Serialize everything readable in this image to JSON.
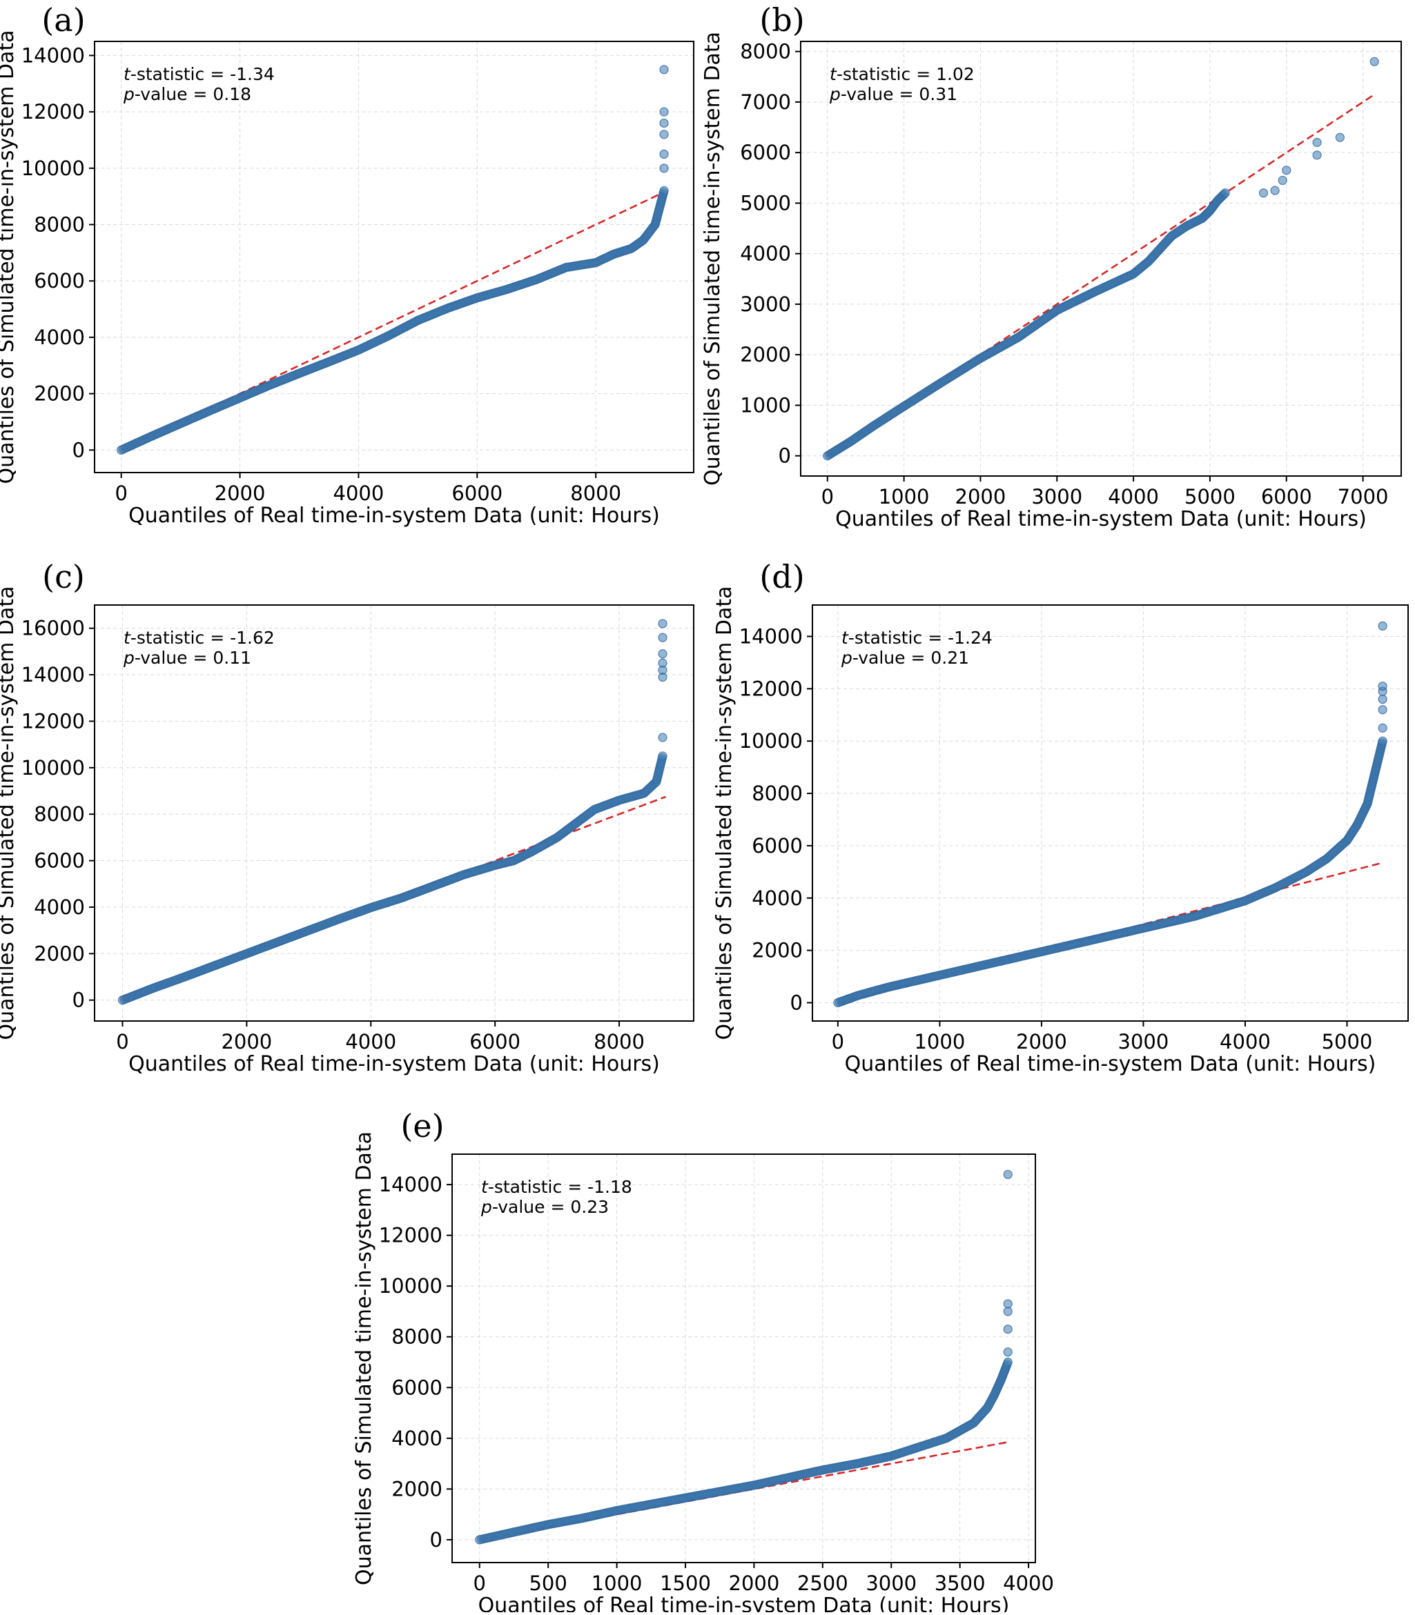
{
  "chart_data": [
    {
      "panel_label": "(a)",
      "type": "scatter",
      "xlabel": "Quantiles of Real time-in-system Data (unit: Hours)",
      "ylabel": "Quantiles of Simulated time-in-system Data",
      "xlim": [
        -450,
        9650
      ],
      "ylim": [
        -800,
        14500
      ],
      "xticks": [
        0,
        2000,
        4000,
        6000,
        8000
      ],
      "yticks": [
        0,
        2000,
        4000,
        6000,
        8000,
        10000,
        12000,
        14000
      ],
      "t_statistic": "-1.34",
      "p_value": "0.18",
      "reference_line": [
        [
          0,
          0
        ],
        [
          9150,
          9150
        ]
      ],
      "qq_points": [
        [
          0,
          0
        ],
        [
          500,
          480
        ],
        [
          1000,
          940
        ],
        [
          1500,
          1400
        ],
        [
          2000,
          1850
        ],
        [
          2500,
          2300
        ],
        [
          3000,
          2720
        ],
        [
          3500,
          3130
        ],
        [
          4000,
          3550
        ],
        [
          4500,
          4050
        ],
        [
          5000,
          4600
        ],
        [
          5500,
          5030
        ],
        [
          6000,
          5400
        ],
        [
          6500,
          5700
        ],
        [
          7000,
          6050
        ],
        [
          7500,
          6480
        ],
        [
          8000,
          6650
        ],
        [
          8300,
          6950
        ],
        [
          8600,
          7150
        ],
        [
          8800,
          7450
        ],
        [
          9000,
          8000
        ],
        [
          9100,
          8800
        ],
        [
          9150,
          9200
        ]
      ],
      "tail_points": [
        [
          9150,
          10000
        ],
        [
          9150,
          10500
        ],
        [
          9150,
          11200
        ],
        [
          9150,
          11600
        ],
        [
          9150,
          12000
        ],
        [
          9150,
          13500
        ]
      ]
    },
    {
      "panel_label": "(b)",
      "type": "scatter",
      "xlabel": "Quantiles of Real time-in-system Data (unit: Hours)",
      "ylabel": "Quantiles of Simulated time-in-system Data",
      "xlim": [
        -350,
        7500
      ],
      "ylim": [
        -400,
        8200
      ],
      "xticks": [
        0,
        1000,
        2000,
        3000,
        4000,
        5000,
        6000,
        7000
      ],
      "yticks": [
        0,
        1000,
        2000,
        3000,
        4000,
        5000,
        6000,
        7000,
        8000
      ],
      "t_statistic": "1.02",
      "p_value": "0.31",
      "reference_line": [
        [
          0,
          0
        ],
        [
          7150,
          7150
        ]
      ],
      "qq_points": [
        [
          0,
          0
        ],
        [
          300,
          280
        ],
        [
          600,
          590
        ],
        [
          1000,
          980
        ],
        [
          1500,
          1460
        ],
        [
          2000,
          1930
        ],
        [
          2500,
          2350
        ],
        [
          3000,
          2880
        ],
        [
          3500,
          3250
        ],
        [
          4000,
          3600
        ],
        [
          4200,
          3850
        ],
        [
          4500,
          4350
        ],
        [
          4700,
          4550
        ],
        [
          4900,
          4700
        ],
        [
          5000,
          4850
        ],
        [
          5100,
          5050
        ],
        [
          5200,
          5200
        ]
      ],
      "tail_points": [
        [
          5700,
          5200
        ],
        [
          5850,
          5250
        ],
        [
          5950,
          5450
        ],
        [
          6000,
          5650
        ],
        [
          6400,
          5950
        ],
        [
          6400,
          6200
        ],
        [
          6700,
          6300
        ],
        [
          7150,
          7800
        ]
      ]
    },
    {
      "panel_label": "(c)",
      "type": "scatter",
      "xlabel": "Quantiles of Real time-in-system Data (unit: Hours)",
      "ylabel": "Quantiles of Simulated time-in-system Data",
      "xlim": [
        -450,
        9200
      ],
      "ylim": [
        -900,
        17000
      ],
      "xticks": [
        0,
        2000,
        4000,
        6000,
        8000
      ],
      "yticks": [
        0,
        2000,
        4000,
        6000,
        8000,
        10000,
        12000,
        14000,
        16000
      ],
      "t_statistic": "-1.62",
      "p_value": "0.11",
      "reference_line": [
        [
          0,
          0
        ],
        [
          8750,
          8750
        ]
      ],
      "qq_points": [
        [
          0,
          0
        ],
        [
          500,
          520
        ],
        [
          1000,
          1000
        ],
        [
          1500,
          1500
        ],
        [
          2000,
          2000
        ],
        [
          2500,
          2500
        ],
        [
          3000,
          3000
        ],
        [
          3500,
          3500
        ],
        [
          4000,
          3980
        ],
        [
          4500,
          4400
        ],
        [
          5000,
          4900
        ],
        [
          5500,
          5400
        ],
        [
          6000,
          5800
        ],
        [
          6300,
          6000
        ],
        [
          6600,
          6400
        ],
        [
          7000,
          7000
        ],
        [
          7300,
          7600
        ],
        [
          7600,
          8200
        ],
        [
          8000,
          8600
        ],
        [
          8400,
          8900
        ],
        [
          8600,
          9400
        ],
        [
          8700,
          10500
        ]
      ],
      "tail_points": [
        [
          8700,
          11300
        ],
        [
          8700,
          13900
        ],
        [
          8700,
          14200
        ],
        [
          8700,
          14500
        ],
        [
          8700,
          14900
        ],
        [
          8700,
          15600
        ],
        [
          8700,
          16200
        ]
      ]
    },
    {
      "panel_label": "(d)",
      "type": "scatter",
      "xlabel": "Quantiles of Real time-in-system Data (unit: Hours)",
      "ylabel": "Quantiles of Simulated time-in-system Data",
      "xlim": [
        -250,
        5600
      ],
      "ylim": [
        -700,
        15200
      ],
      "xticks": [
        0,
        1000,
        2000,
        3000,
        4000,
        5000
      ],
      "yticks": [
        0,
        2000,
        4000,
        6000,
        8000,
        10000,
        12000,
        14000
      ],
      "t_statistic": "-1.24",
      "p_value": "0.21",
      "reference_line": [
        [
          0,
          0
        ],
        [
          5350,
          5350
        ]
      ],
      "qq_points": [
        [
          0,
          0
        ],
        [
          200,
          280
        ],
        [
          500,
          600
        ],
        [
          1000,
          1050
        ],
        [
          1500,
          1500
        ],
        [
          2000,
          1950
        ],
        [
          2500,
          2400
        ],
        [
          3000,
          2850
        ],
        [
          3500,
          3300
        ],
        [
          4000,
          3900
        ],
        [
          4300,
          4400
        ],
        [
          4600,
          5000
        ],
        [
          4800,
          5500
        ],
        [
          5000,
          6200
        ],
        [
          5100,
          6800
        ],
        [
          5200,
          7600
        ],
        [
          5250,
          8400
        ],
        [
          5300,
          9200
        ],
        [
          5350,
          10000
        ]
      ],
      "tail_points": [
        [
          5350,
          10500
        ],
        [
          5350,
          11200
        ],
        [
          5350,
          11600
        ],
        [
          5350,
          11900
        ],
        [
          5350,
          12100
        ],
        [
          5350,
          14400
        ]
      ]
    },
    {
      "panel_label": "(e)",
      "type": "scatter",
      "xlabel": "Quantiles of Real time-in-system Data (unit: Hours)",
      "ylabel": "Quantiles of Simulated time-in-system Data",
      "xlim": [
        -200,
        4050
      ],
      "ylim": [
        -900,
        15200
      ],
      "xticks": [
        0,
        500,
        1000,
        1500,
        2000,
        2500,
        3000,
        3500,
        4000
      ],
      "yticks": [
        0,
        2000,
        4000,
        6000,
        8000,
        10000,
        12000,
        14000
      ],
      "t_statistic": "-1.18",
      "p_value": "0.23",
      "reference_line": [
        [
          0,
          0
        ],
        [
          3850,
          3850
        ]
      ],
      "qq_points": [
        [
          0,
          0
        ],
        [
          250,
          300
        ],
        [
          500,
          600
        ],
        [
          750,
          850
        ],
        [
          1000,
          1150
        ],
        [
          1250,
          1400
        ],
        [
          1500,
          1650
        ],
        [
          1750,
          1900
        ],
        [
          2000,
          2150
        ],
        [
          2250,
          2450
        ],
        [
          2500,
          2750
        ],
        [
          2750,
          3000
        ],
        [
          3000,
          3300
        ],
        [
          3200,
          3650
        ],
        [
          3400,
          4000
        ],
        [
          3500,
          4300
        ],
        [
          3600,
          4600
        ],
        [
          3700,
          5200
        ],
        [
          3750,
          5700
        ],
        [
          3800,
          6300
        ],
        [
          3850,
          7000
        ]
      ],
      "tail_points": [
        [
          3850,
          7400
        ],
        [
          3850,
          8300
        ],
        [
          3850,
          9000
        ],
        [
          3850,
          9300
        ],
        [
          3850,
          14400
        ]
      ]
    }
  ]
}
